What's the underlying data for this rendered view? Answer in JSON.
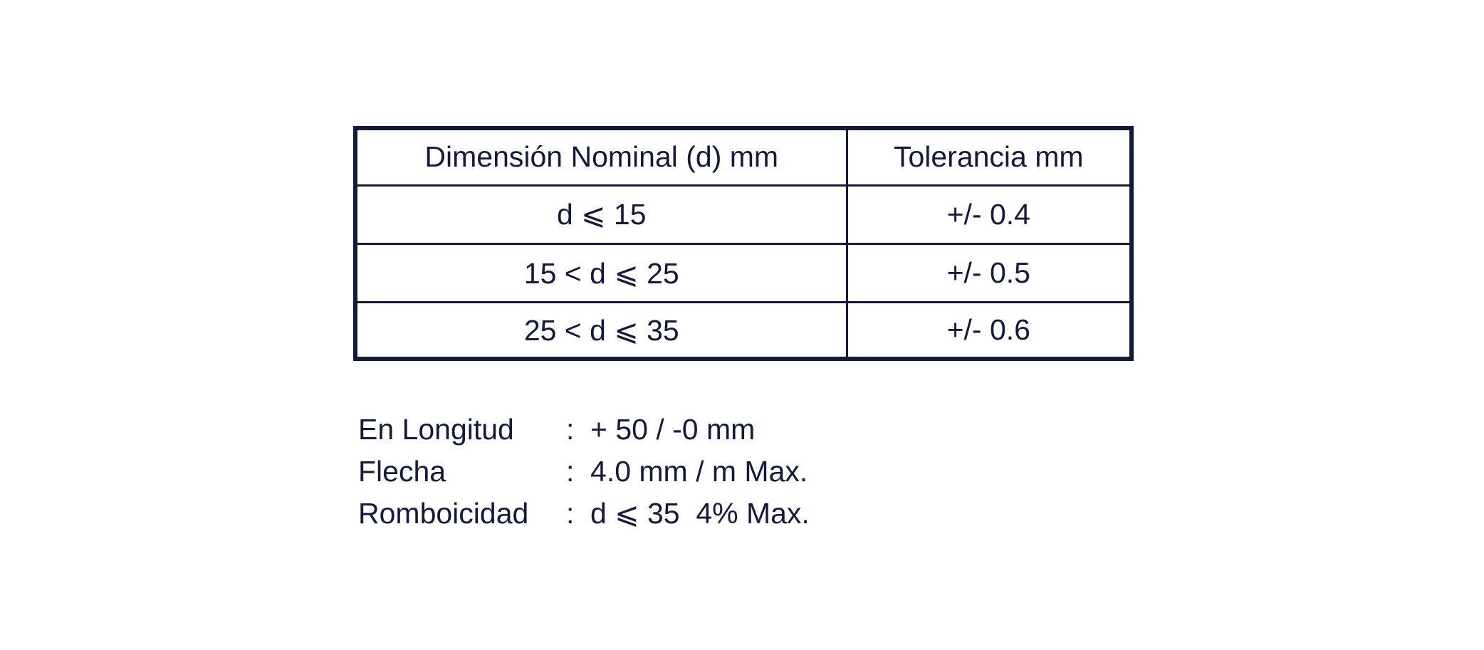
{
  "table": {
    "headers": [
      "Dimensión Nominal (d) mm",
      "Tolerancia mm"
    ],
    "rows": [
      [
        "d ⩽ 15",
        "+/- 0.4"
      ],
      [
        "15 < d ⩽ 25",
        "+/- 0.5"
      ],
      [
        "25 < d ⩽ 35",
        "+/- 0.6"
      ]
    ]
  },
  "specs": [
    {
      "label": "En Longitud",
      "colon": ":",
      "value": "+ 50 / -0 mm"
    },
    {
      "label": "Flecha",
      "colon": ":",
      "value": "4.0 mm / m Max."
    },
    {
      "label": "Romboicidad",
      "colon": ":",
      "value": "d ⩽ 35  4% Max."
    }
  ],
  "colors": {
    "text": "#141a3c",
    "border": "#141a3c",
    "background": "#ffffff"
  }
}
